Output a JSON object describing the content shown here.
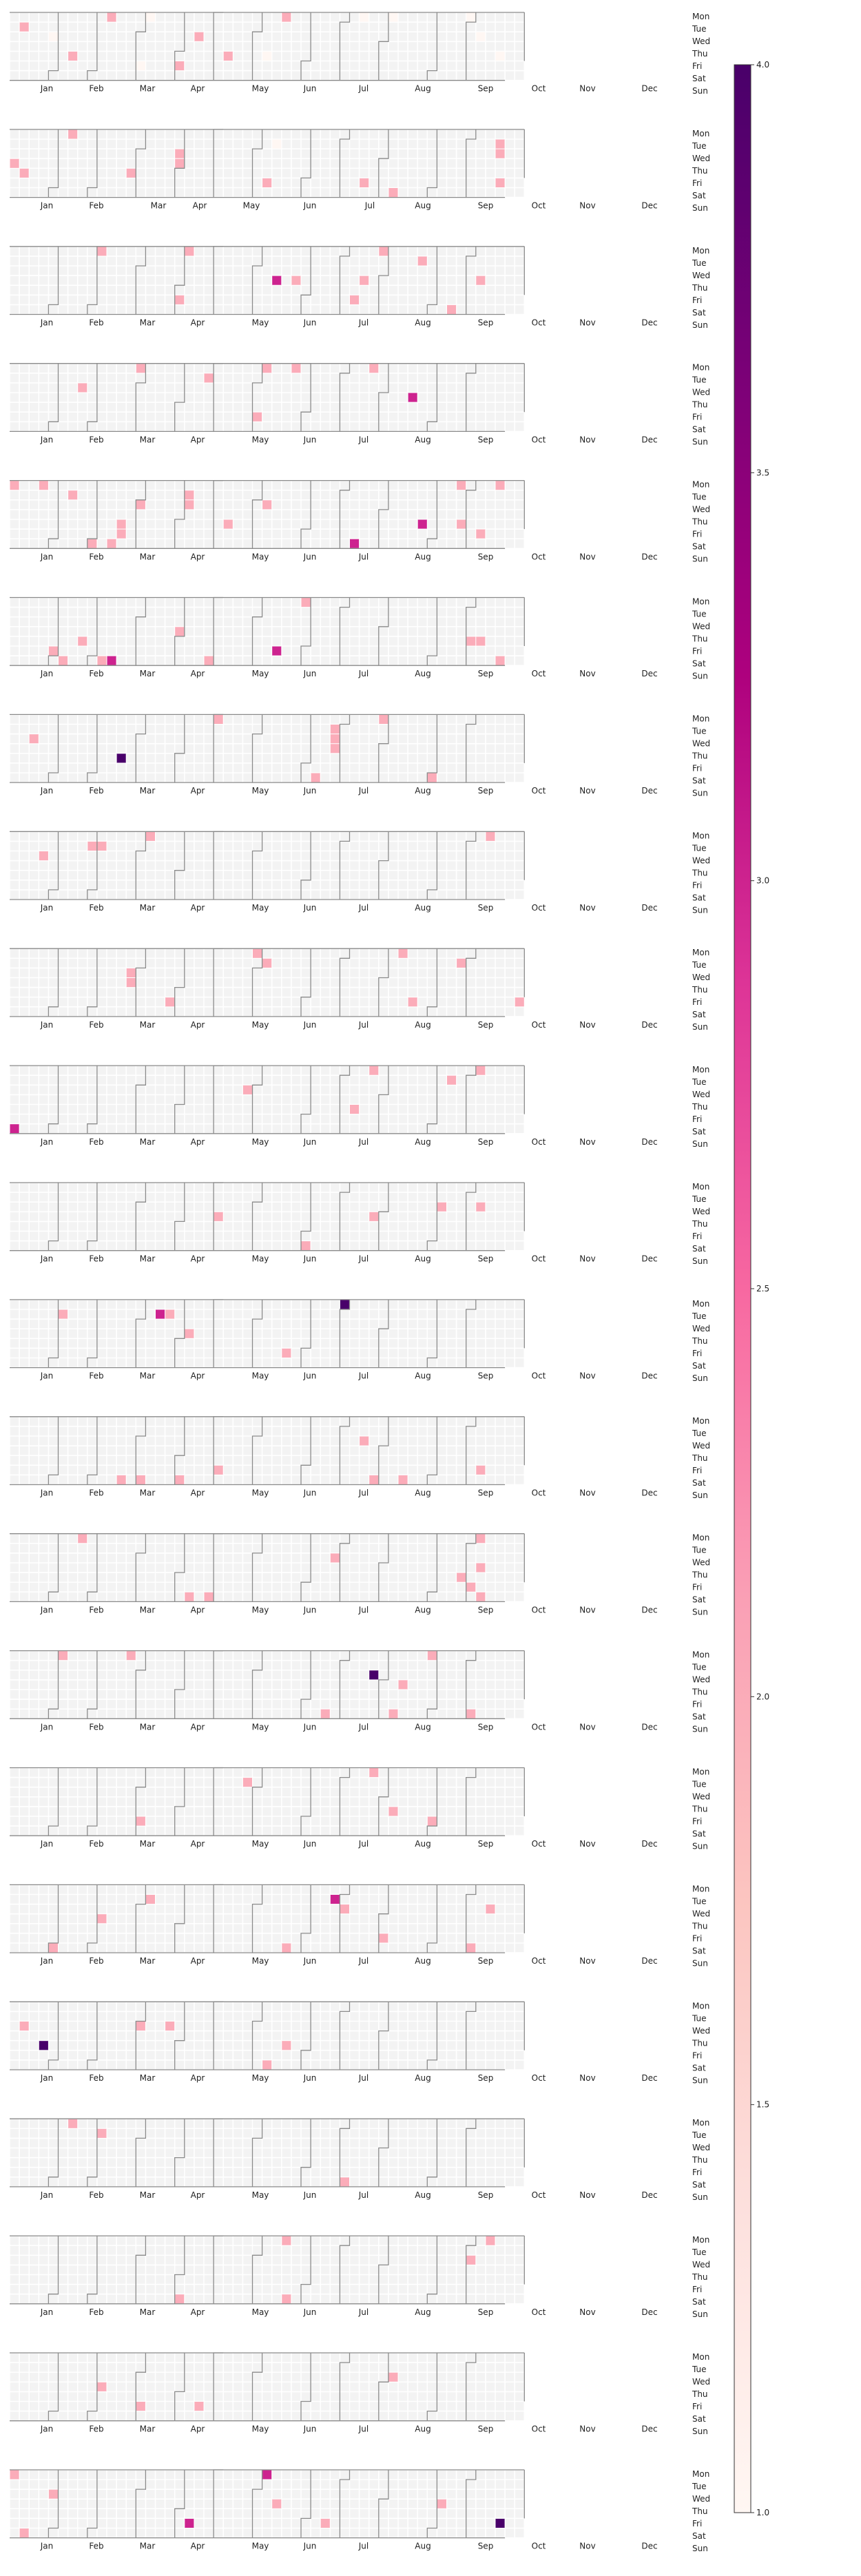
{
  "chart_data": {
    "type": "heatmap",
    "subtype": "calendar-heatmap",
    "title": "",
    "xlabel": "",
    "ylabel": "",
    "panel_count": 22,
    "month_labels": [
      "Jan",
      "Feb",
      "Mar",
      "Apr",
      "May",
      "Jun",
      "Jul",
      "Aug",
      "Sep",
      "Oct",
      "Nov",
      "Dec"
    ],
    "weekday_labels": [
      "Mon",
      "Tue",
      "Wed",
      "Thu",
      "Fri",
      "Sat",
      "Sun"
    ],
    "colorbar": {
      "min": 1.0,
      "max": 4.0,
      "ticks": [
        "1.0",
        "1.5",
        "2.0",
        "2.5",
        "3.0",
        "3.5",
        "4.0"
      ],
      "colormap": "RdPu",
      "colors": [
        "#fff7f3",
        "#fde0dd",
        "#fcc5c0",
        "#fa9fb5",
        "#f768a1",
        "#dd3497",
        "#ae017e",
        "#7a0177",
        "#49006a"
      ]
    },
    "empty_day_color": "#f3f3f3",
    "grid": false,
    "legend": "colorbar-right",
    "cells": [
      [
        [
          1,
          1,
          2
        ],
        [
          4,
          2,
          1
        ],
        [
          6,
          4,
          2
        ],
        [
          10,
          0,
          2
        ],
        [
          13,
          5,
          1
        ],
        [
          14,
          0,
          1
        ],
        [
          17,
          5,
          2
        ],
        [
          19,
          2,
          2
        ],
        [
          22,
          4,
          2
        ],
        [
          26,
          4,
          1
        ],
        [
          28,
          0,
          2
        ],
        [
          36,
          0,
          1
        ],
        [
          39,
          0,
          1
        ],
        [
          47,
          0,
          1
        ],
        [
          48,
          2,
          1
        ],
        [
          50,
          4,
          1
        ]
      ],
      [
        [
          0,
          3,
          2
        ],
        [
          1,
          4,
          2
        ],
        [
          6,
          0,
          2
        ],
        [
          12,
          4,
          2
        ],
        [
          17,
          2,
          2
        ],
        [
          17,
          3,
          2
        ],
        [
          26,
          5,
          2
        ],
        [
          27,
          1,
          1
        ],
        [
          36,
          5,
          2
        ],
        [
          39,
          6,
          2
        ],
        [
          50,
          1,
          2
        ],
        [
          50,
          2,
          2
        ],
        [
          50,
          5,
          2
        ]
      ],
      [
        [
          9,
          0,
          2
        ],
        [
          17,
          5,
          2
        ],
        [
          18,
          0,
          2
        ],
        [
          27,
          3,
          3
        ],
        [
          29,
          3,
          2
        ],
        [
          35,
          5,
          2
        ],
        [
          36,
          3,
          2
        ],
        [
          38,
          0,
          2
        ],
        [
          42,
          1,
          2
        ],
        [
          45,
          6,
          2
        ],
        [
          48,
          3,
          2
        ]
      ],
      [
        [
          7,
          2,
          2
        ],
        [
          13,
          0,
          2
        ],
        [
          20,
          1,
          2
        ],
        [
          25,
          5,
          2
        ],
        [
          26,
          0,
          2
        ],
        [
          29,
          0,
          2
        ],
        [
          37,
          0,
          2
        ],
        [
          41,
          3,
          3
        ]
      ],
      [
        [
          0,
          0,
          2
        ],
        [
          3,
          0,
          2
        ],
        [
          6,
          1,
          2
        ],
        [
          8,
          6,
          2
        ],
        [
          10,
          6,
          2
        ],
        [
          11,
          4,
          2
        ],
        [
          11,
          5,
          2
        ],
        [
          13,
          2,
          2
        ],
        [
          18,
          1,
          2
        ],
        [
          18,
          2,
          2
        ],
        [
          22,
          4,
          2
        ],
        [
          26,
          2,
          2
        ],
        [
          35,
          6,
          3
        ],
        [
          42,
          4,
          3
        ],
        [
          46,
          0,
          2
        ],
        [
          46,
          4,
          2
        ],
        [
          48,
          5,
          2
        ],
        [
          50,
          0,
          2
        ]
      ],
      [
        [
          4,
          5,
          2
        ],
        [
          5,
          6,
          2
        ],
        [
          7,
          4,
          2
        ],
        [
          9,
          6,
          2
        ],
        [
          10,
          6,
          3
        ],
        [
          17,
          3,
          2
        ],
        [
          20,
          6,
          2
        ],
        [
          27,
          5,
          3
        ],
        [
          30,
          0,
          2
        ],
        [
          47,
          4,
          2
        ],
        [
          48,
          4,
          2
        ],
        [
          50,
          6,
          2
        ]
      ],
      [
        [
          2,
          2,
          2
        ],
        [
          11,
          4,
          4
        ],
        [
          21,
          0,
          2
        ],
        [
          33,
          1,
          2
        ],
        [
          33,
          2,
          2
        ],
        [
          33,
          3,
          2
        ],
        [
          31,
          6,
          2
        ],
        [
          38,
          0,
          2
        ],
        [
          43,
          6,
          2
        ]
      ],
      [
        [
          3,
          2,
          2
        ],
        [
          8,
          1,
          2
        ],
        [
          9,
          1,
          2
        ],
        [
          14,
          0,
          2
        ],
        [
          49,
          0,
          2
        ]
      ],
      [
        [
          12,
          2,
          2
        ],
        [
          12,
          3,
          2
        ],
        [
          16,
          5,
          2
        ],
        [
          25,
          0,
          2
        ],
        [
          26,
          1,
          2
        ],
        [
          40,
          0,
          2
        ],
        [
          41,
          5,
          2
        ],
        [
          46,
          1,
          2
        ],
        [
          52,
          5,
          2
        ]
      ],
      [
        [
          0,
          6,
          3
        ],
        [
          24,
          2,
          2
        ],
        [
          35,
          4,
          2
        ],
        [
          37,
          0,
          2
        ],
        [
          45,
          1,
          2
        ],
        [
          48,
          0,
          2
        ]
      ],
      [
        [
          21,
          3,
          2
        ],
        [
          30,
          6,
          2
        ],
        [
          37,
          3,
          2
        ],
        [
          44,
          2,
          2
        ],
        [
          48,
          2,
          2
        ]
      ],
      [
        [
          5,
          1,
          2
        ],
        [
          15,
          1,
          3
        ],
        [
          16,
          1,
          2
        ],
        [
          18,
          3,
          2
        ],
        [
          28,
          5,
          2
        ],
        [
          34,
          0,
          4
        ]
      ],
      [
        [
          11,
          6,
          2
        ],
        [
          13,
          6,
          2
        ],
        [
          17,
          6,
          2
        ],
        [
          21,
          5,
          2
        ],
        [
          36,
          2,
          2
        ],
        [
          37,
          6,
          2
        ],
        [
          40,
          6,
          2
        ],
        [
          48,
          5,
          2
        ]
      ],
      [
        [
          7,
          0,
          2
        ],
        [
          18,
          6,
          2
        ],
        [
          20,
          6,
          2
        ],
        [
          33,
          2,
          2
        ],
        [
          46,
          4,
          2
        ],
        [
          48,
          0,
          2
        ],
        [
          48,
          3,
          2
        ],
        [
          47,
          5,
          2
        ],
        [
          48,
          6,
          2
        ]
      ],
      [
        [
          5,
          0,
          2
        ],
        [
          12,
          0,
          2
        ],
        [
          32,
          6,
          2
        ],
        [
          37,
          2,
          4
        ],
        [
          40,
          3,
          2
        ],
        [
          39,
          6,
          2
        ],
        [
          43,
          0,
          2
        ],
        [
          47,
          6,
          2
        ]
      ],
      [
        [
          13,
          5,
          2
        ],
        [
          24,
          1,
          2
        ],
        [
          37,
          0,
          2
        ],
        [
          39,
          4,
          2
        ],
        [
          43,
          5,
          2
        ]
      ],
      [
        [
          4,
          6,
          2
        ],
        [
          9,
          3,
          2
        ],
        [
          14,
          1,
          2
        ],
        [
          28,
          6,
          2
        ],
        [
          33,
          1,
          3
        ],
        [
          34,
          2,
          2
        ],
        [
          38,
          5,
          2
        ],
        [
          47,
          6,
          2
        ],
        [
          49,
          2,
          2
        ]
      ],
      [
        [
          1,
          2,
          2
        ],
        [
          3,
          4,
          4
        ],
        [
          13,
          2,
          2
        ],
        [
          16,
          2,
          2
        ],
        [
          28,
          4,
          2
        ],
        [
          26,
          6,
          2
        ]
      ],
      [
        [
          6,
          0,
          2
        ],
        [
          9,
          1,
          2
        ],
        [
          34,
          6,
          2
        ]
      ],
      [
        [
          17,
          6,
          2
        ],
        [
          28,
          0,
          2
        ],
        [
          28,
          6,
          2
        ],
        [
          47,
          2,
          2
        ],
        [
          49,
          0,
          2
        ]
      ],
      [
        [
          9,
          3,
          2
        ],
        [
          13,
          5,
          2
        ],
        [
          19,
          5,
          2
        ],
        [
          39,
          2,
          2
        ]
      ],
      [
        [
          0,
          0,
          2
        ],
        [
          4,
          2,
          2
        ],
        [
          1,
          6,
          2
        ],
        [
          18,
          5,
          3
        ],
        [
          26,
          0,
          3
        ],
        [
          27,
          3,
          2
        ],
        [
          32,
          5,
          2
        ],
        [
          44,
          3,
          2
        ],
        [
          50,
          5,
          4
        ]
      ]
    ]
  }
}
